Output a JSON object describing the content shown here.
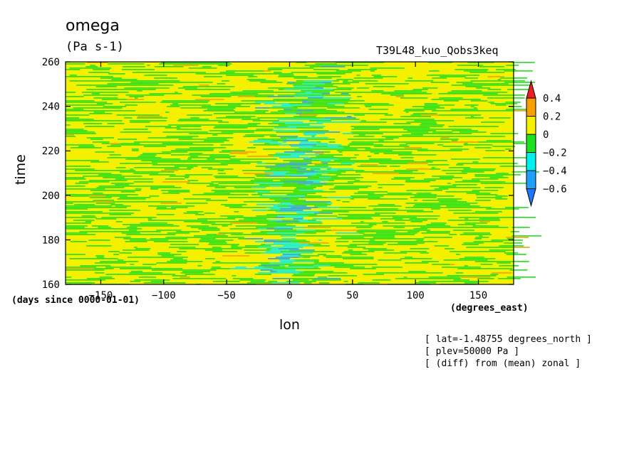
{
  "chart_data": {
    "type": "heatmap",
    "title": "omega",
    "units": "(Pa s-1)",
    "run_label": "T39L48_kuo_Qobs3keq",
    "xlabel": "lon",
    "ylabel": "time",
    "x_units": "(degrees_east)",
    "y_units": "(days since 0000-01-01)",
    "xlim": [
      -178,
      178
    ],
    "ylim": [
      160,
      260
    ],
    "x_ticks": [
      -150,
      -100,
      -50,
      0,
      50,
      100,
      150
    ],
    "y_ticks": [
      160,
      180,
      200,
      220,
      240,
      260
    ],
    "colorbar": {
      "levels": [
        -0.6,
        -0.4,
        -0.2,
        0,
        0.2,
        0.4
      ],
      "labels": [
        "0.4",
        "0.2",
        "0",
        "-0.2",
        "-0.4",
        "-0.6"
      ],
      "colors": {
        "below_-0.6": "#1e78ff",
        "-0.6_to_-0.4": "#1ea0ff",
        "-0.4_to_-0.2": "#00f0f0",
        "-0.2_to_0": "#1ee11e",
        "0_to_0.2": "#f5f000",
        "0.2_to_0.4": "#f5a000",
        "above_0.4": "#f01e1e"
      }
    },
    "field_description": "Noisy zonal-anomaly omega field; mostly small positive (yellow) and slightly negative (green) values with an eastward-tilted negative band (cyan/blue) centred near lon 0 between days 170 and 250."
  },
  "annotations": [
    "[ lat=-1.48755 degrees_north ]",
    "[ plev=50000 Pa ]",
    "[ (diff) from (mean) zonal ]"
  ]
}
